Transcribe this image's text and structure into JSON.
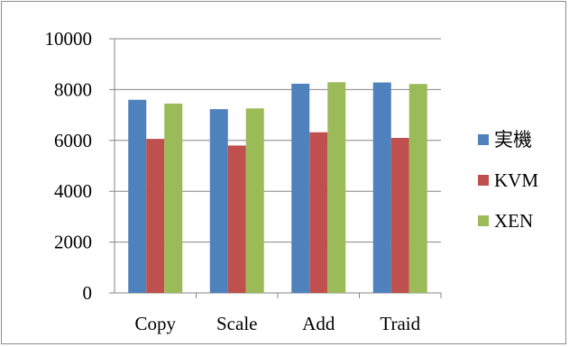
{
  "chart_data": {
    "type": "bar",
    "title": "",
    "xlabel": "",
    "ylabel": "",
    "categories": [
      "Copy",
      "Scale",
      "Add",
      "Traid"
    ],
    "series": [
      {
        "name": "実機",
        "color": "#4f81bd",
        "values": [
          7600,
          7230,
          8230,
          8280
        ]
      },
      {
        "name": "KVM",
        "color": "#c0504d",
        "values": [
          6060,
          5800,
          6320,
          6100
        ]
      },
      {
        "name": "XEN",
        "color": "#9bbb59",
        "values": [
          7450,
          7260,
          8290,
          8220
        ]
      }
    ],
    "ylim": [
      0,
      10000
    ],
    "yticks": [
      0,
      2000,
      4000,
      6000,
      8000,
      10000
    ],
    "grid": true,
    "legend": "right"
  }
}
